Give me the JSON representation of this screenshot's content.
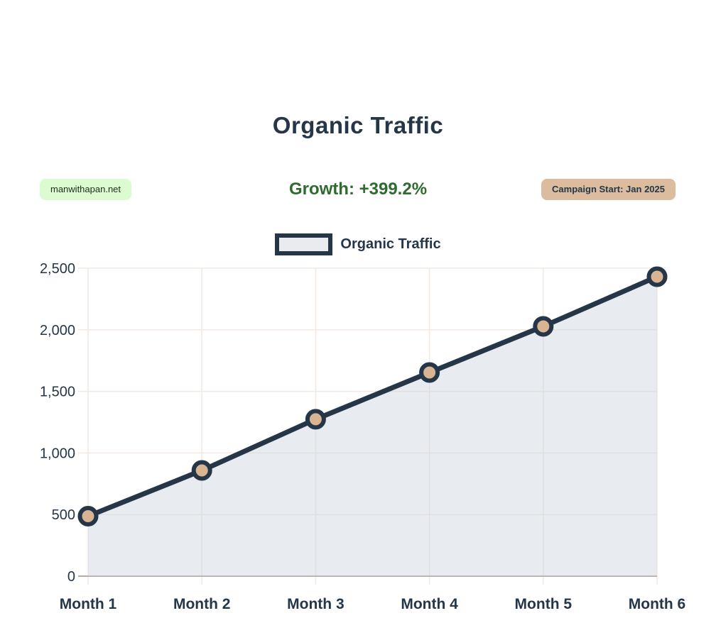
{
  "header": {
    "title": "Organic Traffic",
    "site_badge": "manwithapan.net",
    "growth": "Growth: +399.2%",
    "campaign_badge": "Campaign Start: Jan 2025"
  },
  "legend": {
    "label": "Organic Traffic"
  },
  "colors": {
    "background": "#ffffff",
    "ink": "#253649",
    "green_text": "#2e6b2e",
    "green_badge_bg": "#ddfbd1",
    "tan_badge_bg": "#dcbc9e",
    "marker_fill": "#d8b493",
    "grid": "#f2e9e3",
    "axis": "#b5ada6",
    "area_fill": "rgba(203,210,219,0.45)"
  },
  "chart_data": {
    "type": "area",
    "title": "Organic Traffic",
    "categories": [
      "Month 1",
      "Month 2",
      "Month 3",
      "Month 4",
      "Month 5",
      "Month 6"
    ],
    "series": [
      {
        "name": "Organic Traffic",
        "values": [
          487,
          858,
          1274,
          1653,
          2028,
          2431
        ]
      }
    ],
    "xlabel": "",
    "ylabel": "",
    "ylim": [
      0,
      2500
    ],
    "ytick_step": 500,
    "ytick_labels": [
      "0",
      "500",
      "1,000",
      "1,500",
      "2,000",
      "2,500"
    ],
    "grid": true,
    "legend_position": "top"
  }
}
